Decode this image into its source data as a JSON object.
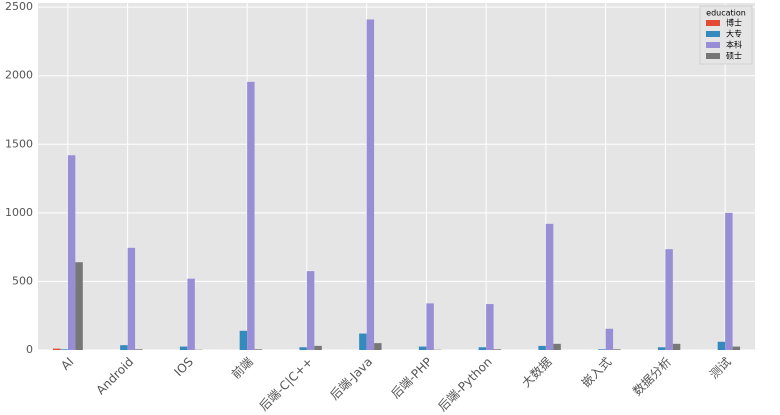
{
  "chart_data": {
    "type": "grouped_bar",
    "categories": [
      "AI",
      "Android",
      "IOS",
      "前端",
      "后端-C|C++",
      "后端-Java",
      "后端-PHP",
      "后端-Python",
      "大数据",
      "嵌入式",
      "数据分析",
      "测试"
    ],
    "legend_title": "education",
    "legend_position": "upper right",
    "grid": true,
    "series": [
      {
        "name": "博士",
        "color": "#E24A33",
        "values": [
          10,
          0,
          0,
          0,
          0,
          0,
          0,
          0,
          0,
          0,
          0,
          0
        ]
      },
      {
        "name": "大专",
        "color": "#348ABD",
        "values": [
          5,
          35,
          25,
          140,
          20,
          120,
          25,
          20,
          30,
          5,
          20,
          60
        ]
      },
      {
        "name": "本科",
        "color": "#988ED5",
        "values": [
          1420,
          745,
          520,
          1955,
          575,
          2410,
          340,
          335,
          920,
          155,
          735,
          1000
        ]
      },
      {
        "name": "硕士",
        "color": "#777777",
        "values": [
          640,
          5,
          2,
          5,
          30,
          50,
          2,
          5,
          45,
          5,
          45,
          25
        ]
      }
    ],
    "ylim": [
      0,
      2530
    ],
    "yticks": [
      0,
      500,
      1000,
      1500,
      2000,
      2500
    ]
  }
}
